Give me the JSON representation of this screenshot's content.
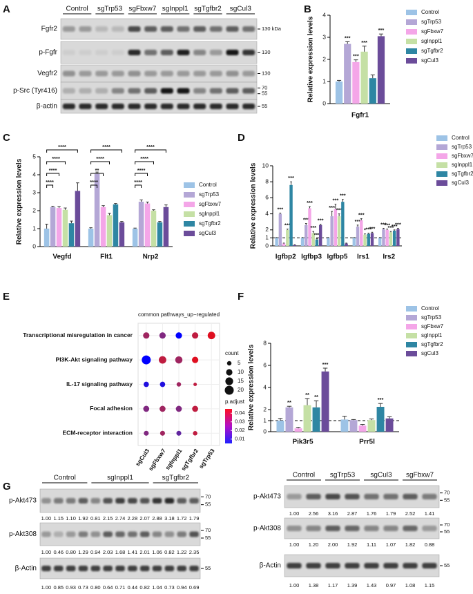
{
  "panel_labels": [
    "A",
    "B",
    "C",
    "D",
    "E",
    "F",
    "G"
  ],
  "blot_a": {
    "groups": [
      "Control",
      "sgTrp53",
      "sgFbxw7",
      "sgInppl1",
      "sgTgfbr2",
      "sgCul3"
    ],
    "rows": [
      {
        "label": "Fgfr2",
        "markers": [
          "130 kDa"
        ]
      },
      {
        "label": "p-Fgfr",
        "markers": [
          "130"
        ]
      },
      {
        "label": "Vegfr2",
        "markers": [
          "130"
        ]
      },
      {
        "label": "p-Src (Tyr416)",
        "markers": [
          "70",
          "55"
        ]
      },
      {
        "label": "β-actin",
        "markers": [
          "55"
        ]
      }
    ]
  },
  "chart_data": [
    {
      "type": "bar",
      "categories": [
        "Fgfr1"
      ],
      "ylabel": "Relative expression levels",
      "ylim": [
        0,
        4
      ],
      "yticks": [
        0,
        1,
        2,
        3,
        4
      ],
      "legend": "right",
      "significance_marks": "above",
      "series": [
        {
          "name": "Control",
          "color": "#9dc3e6",
          "values": [
            1.0
          ],
          "errors": [
            0.05
          ]
        },
        {
          "name": "sgTrp53",
          "color": "#b4a7d6",
          "values": [
            2.7
          ],
          "errors": [
            0.1
          ],
          "significance": [
            "***"
          ]
        },
        {
          "name": "sgFbxw7",
          "color": "#f4a6e8",
          "values": [
            1.88
          ],
          "errors": [
            0.1
          ],
          "significance": [
            "***"
          ]
        },
        {
          "name": "sgInppl1",
          "color": "#c5e0a5",
          "values": [
            2.35
          ],
          "errors": [
            0.25
          ],
          "significance": [
            "***"
          ]
        },
        {
          "name": "sgTgfbr2",
          "color": "#2e86a3",
          "values": [
            1.15
          ],
          "errors": [
            0.15
          ]
        },
        {
          "name": "sgCul3",
          "color": "#6b4c9a",
          "values": [
            3.05
          ],
          "errors": [
            0.1
          ],
          "significance": [
            "***"
          ]
        }
      ]
    },
    {
      "type": "bar",
      "categories": [
        "Vegfd",
        "Flt1",
        "Nrp2"
      ],
      "ylabel": "Relative expression levels",
      "ylim": [
        0,
        5
      ],
      "yticks": [
        0,
        1,
        2,
        3,
        4,
        5
      ],
      "legend": "right",
      "significance_marks": "bracket",
      "series": [
        {
          "name": "Control",
          "color": "#9dc3e6",
          "values": [
            1.0,
            1.0,
            1.0
          ],
          "errors": [
            0.25,
            0.05,
            0.03
          ]
        },
        {
          "name": "sgTrp53",
          "color": "#b4a7d6",
          "values": [
            2.2,
            4.05,
            2.5
          ],
          "errors": [
            0.05,
            0.1,
            0.1
          ],
          "significance": [
            "****",
            "****",
            "****"
          ]
        },
        {
          "name": "sgFbxw7",
          "color": "#f4a6e8",
          "values": [
            2.15,
            2.2,
            2.4
          ],
          "errors": [
            0.08,
            0.08,
            0.08
          ],
          "significance": [
            "****",
            "**",
            "****"
          ]
        },
        {
          "name": "sgInppl1",
          "color": "#c5e0a5",
          "values": [
            2.05,
            1.75,
            2.0
          ],
          "errors": [
            0.1,
            0.1,
            0.05
          ],
          "significance": [
            "****",
            "****",
            "****"
          ]
        },
        {
          "name": "sgTgfbr2",
          "color": "#2e86a3",
          "values": [
            1.3,
            2.35,
            1.35
          ],
          "errors": [
            0.12,
            0.05,
            0.05
          ]
        },
        {
          "name": "sgCul3",
          "color": "#6b4c9a",
          "values": [
            3.1,
            1.35,
            2.2
          ],
          "errors": [
            0.45,
            0.05,
            0.12
          ],
          "significance": [
            "****",
            "****",
            "****"
          ]
        }
      ]
    },
    {
      "type": "bar",
      "categories": [
        "Igfbp2",
        "Igfbp3",
        "Igfbp5",
        "Irs1",
        "Irs2"
      ],
      "ylabel": "Relative expression levels",
      "ylim": [
        0,
        10
      ],
      "yticks": [
        0,
        1,
        2,
        4,
        6,
        8,
        10
      ],
      "reference_line": 1,
      "legend": "right",
      "significance_marks": "above",
      "series": [
        {
          "name": "Control",
          "color": "#9dc3e6",
          "values": [
            1,
            1,
            1,
            1,
            1
          ],
          "errors": [
            0.05,
            0.05,
            0.05,
            0.05,
            0.05
          ]
        },
        {
          "name": "sgTrp53",
          "color": "#b4a7d6",
          "values": [
            4.0,
            2.6,
            3.7,
            2.4,
            2.1
          ],
          "errors": [
            0.1,
            0.2,
            0.6,
            0.2,
            0.1
          ],
          "significance": [
            "***",
            "***",
            "***",
            "***",
            "***"
          ]
        },
        {
          "name": "sgFbxw7",
          "color": "#f4a6e8",
          "values": [
            0.3,
            4.7,
            4.6,
            3.2,
            2.0
          ],
          "errors": [
            0.05,
            0.2,
            0.6,
            0.2,
            0.1
          ],
          "significance": [
            null,
            "***",
            "***",
            "***",
            "***"
          ]
        },
        {
          "name": "sgInppl1",
          "color": "#c5e0a5",
          "values": [
            2.0,
            1.6,
            3.7,
            1.4,
            1.7
          ],
          "errors": [
            0.1,
            0.2,
            0.3,
            0.1,
            0.1
          ],
          "significance": [
            "***",
            "***",
            "***",
            "*",
            "***"
          ]
        },
        {
          "name": "sgTgfbr2",
          "color": "#2e86a3",
          "values": [
            7.6,
            0.8,
            5.5,
            1.5,
            1.9
          ],
          "errors": [
            0.4,
            0.1,
            0.3,
            0.1,
            0.1
          ],
          "significance": [
            "***",
            "***",
            "***",
            "***",
            "***"
          ]
        },
        {
          "name": "sgCul3",
          "color": "#6b4c9a",
          "values": [
            0.1,
            2.6,
            0.3,
            1.6,
            2.1
          ],
          "errors": [
            0.05,
            0.1,
            0.05,
            0.1,
            0.1
          ],
          "significance": [
            null,
            "***",
            null,
            "***",
            "***"
          ]
        }
      ]
    },
    {
      "type": "dot",
      "title": "common pathways_up−regulated",
      "x_categories": [
        "sgCul3",
        "sgFbxw7",
        "sgInppl1",
        "sgTgfbr2",
        "sgTrp53"
      ],
      "y_categories": [
        "Transcriptional misregulation in cancer",
        "PI3K-Akt signaling pathway",
        "IL-17 signaling pathway",
        "Focal adhesion",
        "ECM-receptor interaction"
      ],
      "count": [
        [
          10,
          10,
          10,
          10,
          14
        ],
        [
          20,
          14,
          13,
          10,
          null
        ],
        [
          7,
          7,
          5,
          3,
          null
        ],
        [
          9,
          9,
          9,
          9,
          null
        ],
        [
          6,
          6,
          6,
          5,
          null
        ]
      ],
      "p_adjust": [
        [
          0.03,
          0.025,
          0.005,
          0.035,
          0.04
        ],
        [
          0.005,
          0.035,
          0.03,
          0.04,
          null
        ],
        [
          0.01,
          0.01,
          0.03,
          0.035,
          null
        ],
        [
          0.025,
          0.03,
          0.025,
          0.035,
          null
        ],
        [
          0.025,
          0.03,
          0.02,
          0.035,
          null
        ]
      ],
      "size_label": "count",
      "size_ticks": [
        5,
        10,
        15,
        20
      ],
      "color_label": "p.adjust",
      "clim": [
        0.005,
        0.045
      ],
      "color_ticks": [
        0.01,
        0.02,
        0.03,
        0.04
      ]
    },
    {
      "type": "bar",
      "categories": [
        "Pik3r5",
        "Prr5l"
      ],
      "ylabel": "Relative expression levels",
      "ylim": [
        0,
        8
      ],
      "yticks": [
        0,
        1,
        2,
        4,
        6,
        8
      ],
      "reference_line": 1,
      "legend": "right",
      "significance_marks": "above",
      "series": [
        {
          "name": "Control",
          "color": "#9dc3e6",
          "values": [
            1.0,
            1.1
          ],
          "errors": [
            0.2,
            0.3
          ]
        },
        {
          "name": "sgTrp53",
          "color": "#b4a7d6",
          "values": [
            2.2,
            1.05
          ],
          "errors": [
            0.1,
            0.05
          ],
          "significance": [
            "**",
            null
          ]
        },
        {
          "name": "sgFbxw7",
          "color": "#f4a6e8",
          "values": [
            0.3,
            0.55
          ],
          "errors": [
            0.1,
            0.1
          ]
        },
        {
          "name": "sgInppl1",
          "color": "#c5e0a5",
          "values": [
            2.4,
            1.05
          ],
          "errors": [
            0.6,
            0.1
          ],
          "significance": [
            "**",
            null
          ]
        },
        {
          "name": "sgTgfbr2",
          "color": "#2e86a3",
          "values": [
            2.2,
            2.25
          ],
          "errors": [
            0.6,
            0.3
          ],
          "significance": [
            "**",
            "***"
          ]
        },
        {
          "name": "sgCul3",
          "color": "#6b4c9a",
          "values": [
            5.45,
            1.2
          ],
          "errors": [
            0.3,
            0.15
          ],
          "significance": [
            "***",
            null
          ]
        }
      ]
    }
  ],
  "blot_g": {
    "left": {
      "groups": [
        "Control",
        "sgInppl1",
        "sgTgfbr2"
      ],
      "rows": [
        {
          "label": "p-Akt473",
          "markers": [
            "70",
            "55"
          ],
          "values": [
            "1.00",
            "1.15",
            "1.10",
            "1.92",
            "0.81",
            "2.15",
            "2.74",
            "2.28",
            "2.07",
            "2.88",
            "3.18",
            "1.72",
            "1.79"
          ]
        },
        {
          "label": "p-Akt308",
          "markers": [
            "70",
            "55"
          ],
          "values": [
            "1.00",
            "0.46",
            "0.80",
            "1.29",
            "0.94",
            "2.03",
            "1.68",
            "1.41",
            "2.01",
            "1.06",
            "0.82",
            "1.22",
            "2.35"
          ]
        },
        {
          "label": "β-Actin",
          "markers": [
            "55"
          ],
          "values": [
            "1.00",
            "0.85",
            "0.93",
            "0.73",
            "0.80",
            "0.64",
            "0.71",
            "0.44",
            "0.82",
            "1.04",
            "0.73",
            "0.94",
            "0.69"
          ]
        }
      ]
    },
    "right": {
      "groups": [
        "Control",
        "sgTrp53",
        "sgCul3",
        "sgFbxw7"
      ],
      "rows": [
        {
          "label": "p-Akt473",
          "markers": [
            "70",
            "55"
          ],
          "values": [
            "1.00",
            "2.56",
            "3.16",
            "2.87",
            "1.76",
            "1.79",
            "2.52",
            "1.41"
          ]
        },
        {
          "label": "p-Akt308",
          "markers": [
            "70",
            "55"
          ],
          "values": [
            "1.00",
            "1.20",
            "2.00",
            "1.92",
            "1.11",
            "1.07",
            "1.82",
            "0.88"
          ]
        },
        {
          "label": "β-Actin",
          "markers": [
            "55"
          ],
          "values": [
            "1.00",
            "1.38",
            "1.17",
            "1.39",
            "1.43",
            "0.97",
            "1.08",
            "1.15"
          ]
        }
      ]
    }
  }
}
